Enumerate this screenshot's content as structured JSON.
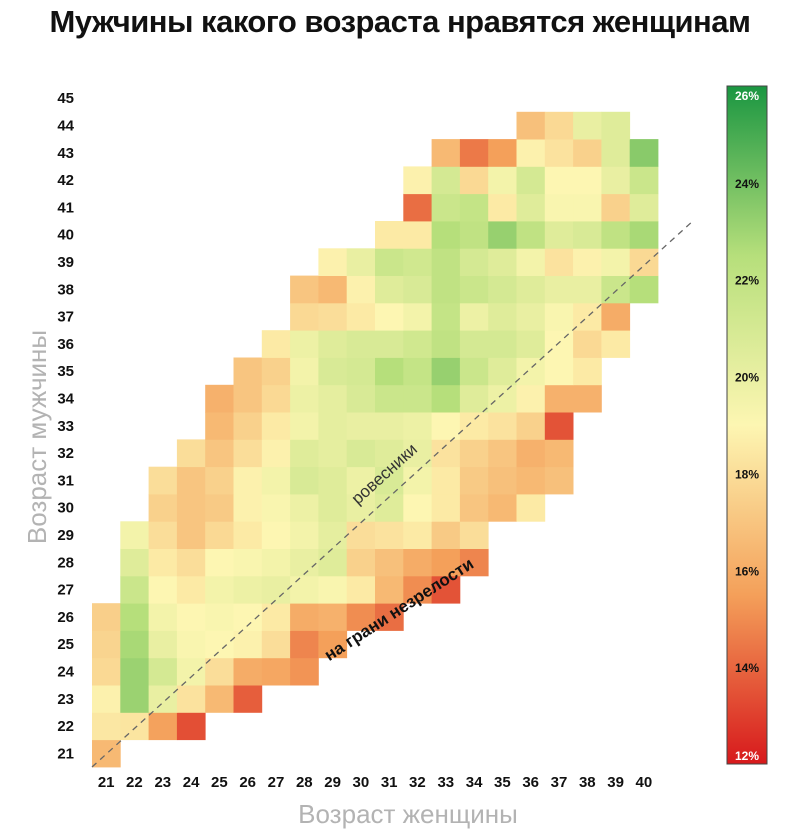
{
  "chart_data": {
    "type": "heatmap",
    "title": "Мужчины какого возраста нравятся женщинам",
    "xlabel": "Возраст женщины",
    "ylabel": "Возраст мужчины",
    "x": [
      21,
      22,
      23,
      24,
      25,
      26,
      27,
      28,
      29,
      30,
      31,
      32,
      33,
      34,
      35,
      36,
      37,
      38,
      39,
      40
    ],
    "y": [
      21,
      22,
      23,
      24,
      25,
      26,
      27,
      28,
      29,
      30,
      31,
      32,
      33,
      34,
      35,
      36,
      37,
      38,
      39,
      40,
      41,
      42,
      43,
      44,
      45
    ],
    "value_unit": "%",
    "color_range": [
      12,
      26
    ],
    "colorbar_ticks": [
      "26%",
      "24%",
      "22%",
      "20%",
      "18%",
      "16%",
      "14%",
      "12%"
    ],
    "colors": {
      "low": "#d7191c",
      "mid_low": "#f4a05a",
      "mid": "#fdf6b2",
      "mid_high": "#b6df7b",
      "high": "#1a9641"
    },
    "diagonal_line": "dashed",
    "annotations": [
      "ровесники",
      "на грани незрелости"
    ],
    "values": [
      [
        16.5,
        null,
        null,
        null,
        null,
        null,
        null,
        null,
        null,
        null,
        null,
        null,
        null,
        null,
        null,
        null,
        null,
        null,
        null,
        null
      ],
      [
        18.4,
        18.3,
        15.6,
        13.4,
        null,
        null,
        null,
        null,
        null,
        null,
        null,
        null,
        null,
        null,
        null,
        null,
        null,
        null,
        null,
        null
      ],
      [
        18.8,
        23.1,
        20.0,
        18.2,
        16.5,
        13.8,
        null,
        null,
        null,
        null,
        null,
        null,
        null,
        null,
        null,
        null,
        null,
        null,
        null,
        null
      ],
      [
        17.8,
        23.1,
        21.0,
        19.5,
        18.0,
        16.0,
        15.8,
        15.2,
        null,
        null,
        null,
        null,
        null,
        null,
        null,
        null,
        null,
        null,
        null,
        null
      ],
      [
        17.6,
        22.8,
        20.0,
        19.2,
        19.0,
        18.8,
        18.0,
        14.8,
        15.5,
        null,
        null,
        null,
        null,
        null,
        null,
        null,
        null,
        null,
        null,
        null
      ],
      [
        17.4,
        22.5,
        19.5,
        19.0,
        19.2,
        19.0,
        18.5,
        16.0,
        16.2,
        15.0,
        14.2,
        null,
        null,
        null,
        null,
        null,
        null,
        null,
        null,
        null
      ],
      [
        null,
        21.5,
        19.0,
        18.5,
        19.5,
        19.8,
        20.0,
        19.5,
        19.2,
        18.5,
        16.5,
        15.0,
        13.5,
        null,
        null,
        null,
        null,
        null,
        null,
        null
      ],
      [
        null,
        20.5,
        18.5,
        18.0,
        19.0,
        19.2,
        19.5,
        20.0,
        20.5,
        17.5,
        16.8,
        16.0,
        15.5,
        14.8,
        null,
        null,
        null,
        null,
        null,
        null
      ],
      [
        null,
        19.5,
        18.0,
        17.0,
        17.8,
        18.5,
        19.0,
        19.5,
        20.2,
        18.0,
        18.2,
        18.5,
        17.2,
        18.0,
        null,
        null,
        null,
        null,
        null,
        null
      ],
      [
        null,
        null,
        17.5,
        17.0,
        17.2,
        18.8,
        19.2,
        19.8,
        20.5,
        20.0,
        20.5,
        19.0,
        18.5,
        17.0,
        16.5,
        18.5,
        null,
        null,
        null,
        null
      ],
      [
        null,
        null,
        18.0,
        17.0,
        17.5,
        18.8,
        19.5,
        20.8,
        20.5,
        19.8,
        20.8,
        19.5,
        18.5,
        17.2,
        16.8,
        16.5,
        16.8,
        null,
        null,
        null
      ],
      [
        null,
        null,
        null,
        18.0,
        17.0,
        18.0,
        18.8,
        20.5,
        20.2,
        20.8,
        20.5,
        20.0,
        18.2,
        17.5,
        17.0,
        16.2,
        16.5,
        null,
        null,
        null
      ],
      [
        null,
        null,
        null,
        null,
        16.5,
        17.5,
        18.5,
        19.5,
        20.2,
        20.0,
        20.0,
        19.8,
        19.0,
        18.5,
        18.2,
        17.5,
        13.5,
        null,
        null,
        null
      ],
      [
        null,
        null,
        null,
        null,
        16.2,
        17.0,
        17.8,
        19.8,
        20.2,
        20.8,
        21.5,
        21.5,
        22.5,
        20.5,
        19.8,
        18.8,
        16.2,
        16.2,
        null,
        null
      ],
      [
        null,
        null,
        null,
        null,
        null,
        17.0,
        17.5,
        19.5,
        20.8,
        21.0,
        22.5,
        21.8,
        23.2,
        21.5,
        20.5,
        19.5,
        19.0,
        18.5,
        null,
        null
      ],
      [
        null,
        null,
        null,
        null,
        null,
        null,
        18.5,
        19.8,
        20.5,
        20.8,
        20.8,
        21.2,
        22.0,
        21.0,
        21.0,
        20.5,
        19.0,
        17.8,
        18.5,
        null
      ],
      [
        null,
        null,
        null,
        null,
        null,
        null,
        null,
        17.8,
        18.0,
        18.5,
        19.0,
        19.5,
        21.8,
        19.8,
        20.5,
        20.0,
        19.2,
        18.5,
        16.0,
        null
      ],
      [
        null,
        null,
        null,
        null,
        null,
        null,
        null,
        17.0,
        16.5,
        18.8,
        20.5,
        20.8,
        22.0,
        21.5,
        21.0,
        20.5,
        20.0,
        20.0,
        21.5,
        22.5
      ],
      [
        null,
        null,
        null,
        null,
        null,
        null,
        null,
        null,
        18.8,
        20.0,
        21.5,
        21.2,
        22.0,
        21.0,
        20.5,
        19.5,
        18.2,
        18.8,
        19.5,
        17.8
      ],
      [
        null,
        null,
        null,
        null,
        null,
        null,
        null,
        null,
        null,
        null,
        18.5,
        18.5,
        22.5,
        22.0,
        23.2,
        22.0,
        20.5,
        20.8,
        22.0,
        22.8
      ],
      [
        null,
        null,
        null,
        null,
        null,
        null,
        null,
        null,
        null,
        null,
        null,
        14.2,
        21.5,
        21.8,
        18.5,
        20.5,
        19.2,
        19.2,
        17.5,
        20.5
      ],
      [
        null,
        null,
        null,
        null,
        null,
        null,
        null,
        null,
        null,
        null,
        null,
        18.8,
        21.0,
        17.8,
        19.5,
        21.0,
        19.0,
        19.0,
        20.0,
        21.5
      ],
      [
        null,
        null,
        null,
        null,
        null,
        null,
        null,
        null,
        null,
        null,
        null,
        null,
        16.5,
        14.5,
        15.5,
        18.8,
        18.2,
        17.5,
        20.5,
        23.5
      ],
      [
        null,
        null,
        null,
        null,
        null,
        null,
        null,
        null,
        null,
        null,
        null,
        null,
        null,
        null,
        null,
        16.8,
        17.8,
        20.0,
        20.5,
        null
      ],
      [
        null,
        null,
        null,
        null,
        null,
        null,
        null,
        null,
        null,
        null,
        null,
        null,
        null,
        null,
        null,
        null,
        null,
        null,
        null,
        null
      ]
    ]
  }
}
